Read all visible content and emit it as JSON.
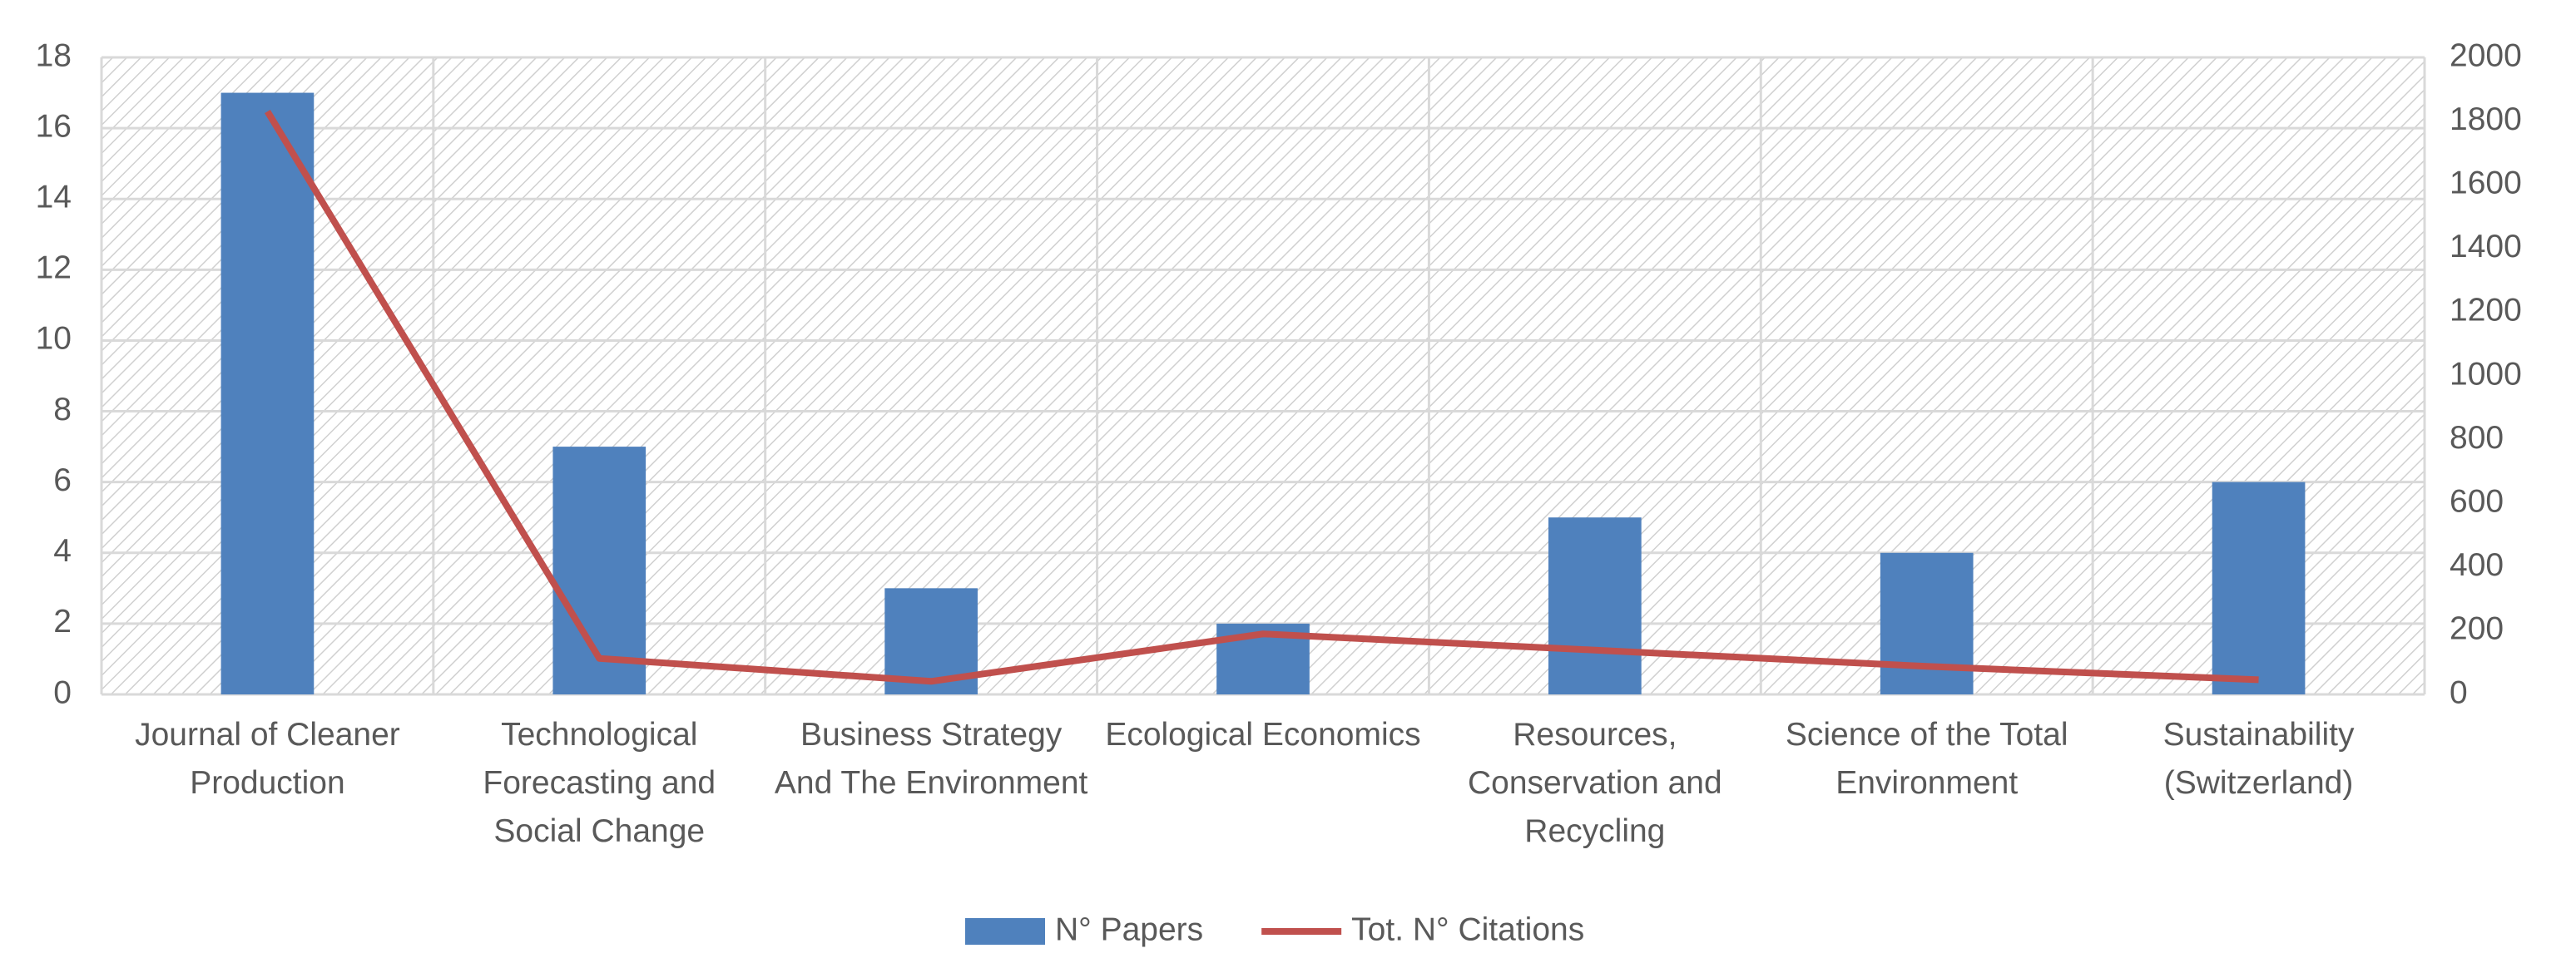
{
  "chart_data": {
    "type": "bar-line",
    "categories": [
      "Journal of Cleaner Production",
      "Technological Forecasting and Social Change",
      "Business Strategy And The Environment",
      "Ecological Economics",
      "Resources, Conservation and Recycling",
      "Science of the Total Environment",
      "Sustainability (Switzerland)"
    ],
    "series": [
      {
        "name": "N° Papers",
        "type": "bar",
        "color": "#4f81bd",
        "values": [
          17,
          7,
          3,
          2,
          5,
          4,
          6
        ]
      },
      {
        "name": "Tot. N° Citations",
        "type": "line",
        "axis": "y2",
        "color": "#c0504d",
        "values": [
          1830,
          113,
          41,
          190,
          139,
          88,
          46
        ]
      }
    ],
    "ylim": [
      0,
      18
    ],
    "yticks": [
      0,
      2,
      4,
      6,
      8,
      10,
      12,
      14,
      16,
      18
    ],
    "y2lim": [
      0,
      2000
    ],
    "y2ticks": [
      0,
      200,
      400,
      600,
      800,
      1000,
      1200,
      1400,
      1600,
      1800,
      2000
    ],
    "grid": true,
    "legend": "bottom"
  }
}
